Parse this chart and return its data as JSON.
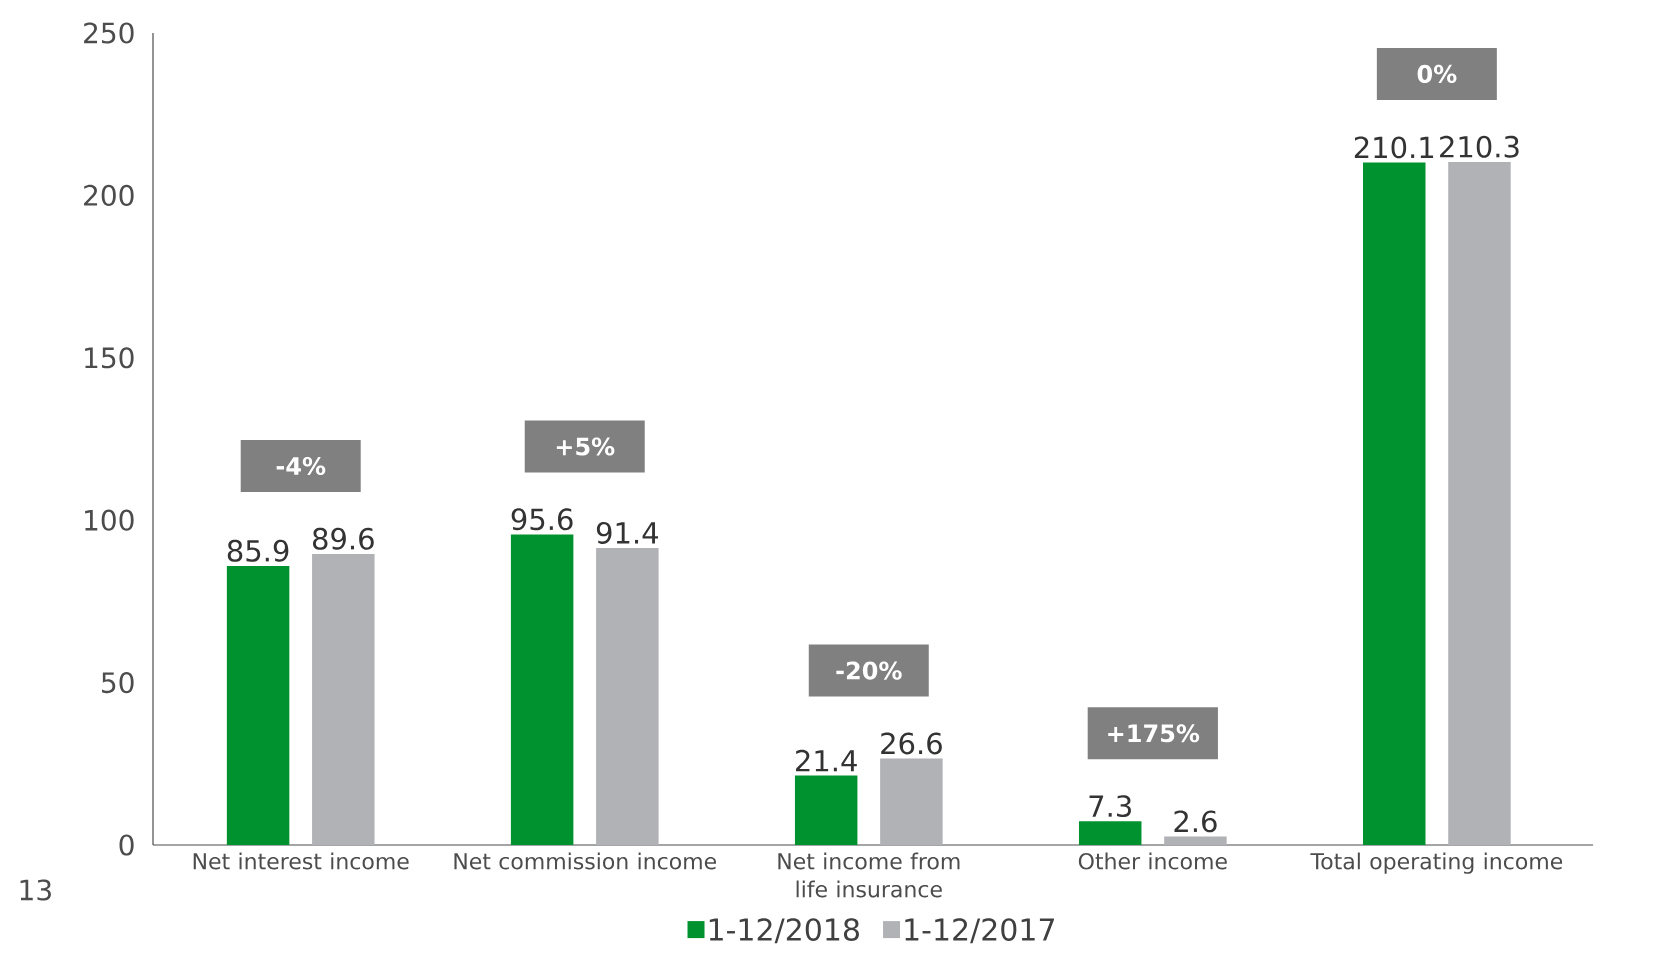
{
  "chart_data": {
    "type": "bar",
    "categories": [
      "Net interest income",
      "Net commission income",
      "Net income from life insurance",
      "Other income",
      "Total operating income"
    ],
    "series": [
      {
        "name": "1-12/2018",
        "color": "#00922f",
        "values": [
          85.9,
          95.6,
          21.4,
          7.3,
          210.1
        ]
      },
      {
        "name": "1-12/2017",
        "color": "#b1b2b6",
        "values": [
          89.6,
          91.4,
          26.6,
          2.6,
          210.3
        ]
      }
    ],
    "ylim": [
      0,
      250
    ],
    "yticks": [
      0,
      50,
      100,
      150,
      200,
      250
    ],
    "data_labels": true,
    "legend": "bottom",
    "annotations": [
      "-4%",
      "+5%",
      "-20%",
      "+175%",
      "0%",
      "13"
    ]
  }
}
